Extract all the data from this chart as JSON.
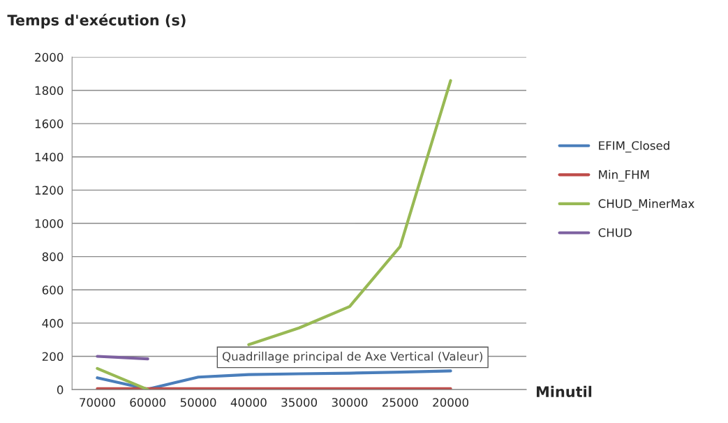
{
  "chart_data": {
    "type": "line",
    "ylabel": "Temps d'exécution (s)",
    "xlabel": "Minutil",
    "categories": [
      "70000",
      "60000",
      "50000",
      "40000",
      "35000",
      "30000",
      "25000",
      "20000"
    ],
    "series": [
      {
        "name": "EFIM_Closed",
        "color": "#4a7ebb",
        "values": [
          71,
          3,
          75,
          90,
          95,
          99,
          105,
          112
        ]
      },
      {
        "name": "Min_FHM",
        "color": "#be4b48",
        "values": [
          5,
          5,
          5,
          5,
          5,
          5,
          5,
          5
        ]
      },
      {
        "name": "CHUD_MinerMax",
        "color": "#98b954",
        "values": [
          127,
          0,
          null,
          270,
          371,
          500,
          861,
          1859
        ]
      },
      {
        "name": "CHUD",
        "color": "#7d60a0",
        "values": [
          200,
          185,
          null,
          null,
          null,
          null,
          null,
          null
        ]
      }
    ],
    "ylim": [
      0,
      2000
    ],
    "yticks": [
      0,
      200,
      400,
      600,
      800,
      1000,
      1200,
      1400,
      1600,
      1800,
      2000
    ],
    "grid": "y",
    "legend": "right",
    "marker": "none",
    "line_style": "solid",
    "annotations": [
      "Quadrillage principal de Axe Vertical (Valeur)"
    ]
  }
}
